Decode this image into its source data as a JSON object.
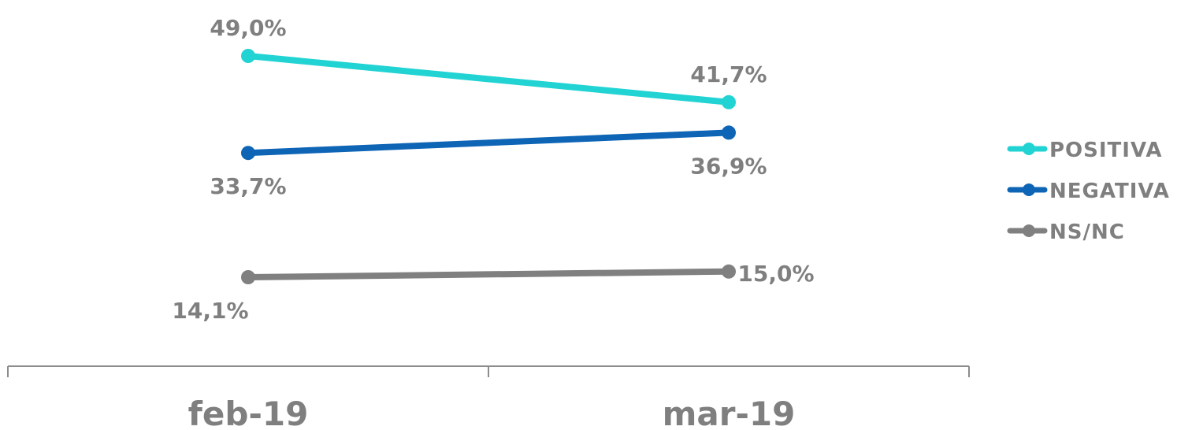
{
  "chart_data": {
    "type": "line",
    "categories": [
      "feb-19",
      "mar-19"
    ],
    "series": [
      {
        "name": "POSITIVA",
        "values": [
          49.0,
          41.7
        ],
        "labels": [
          "49,0%",
          "41,7%"
        ],
        "color": "#22d3d3"
      },
      {
        "name": "NEGATIVA",
        "values": [
          33.7,
          36.9
        ],
        "labels": [
          "33,7%",
          "36,9%"
        ],
        "color": "#0e65b5"
      },
      {
        "name": "NS/NC",
        "values": [
          14.1,
          15.0
        ],
        "labels": [
          "14,1%",
          "15,0%"
        ],
        "color": "#808080"
      }
    ],
    "ylim": [
      0,
      55
    ],
    "grid": false,
    "legend_position": "right"
  }
}
